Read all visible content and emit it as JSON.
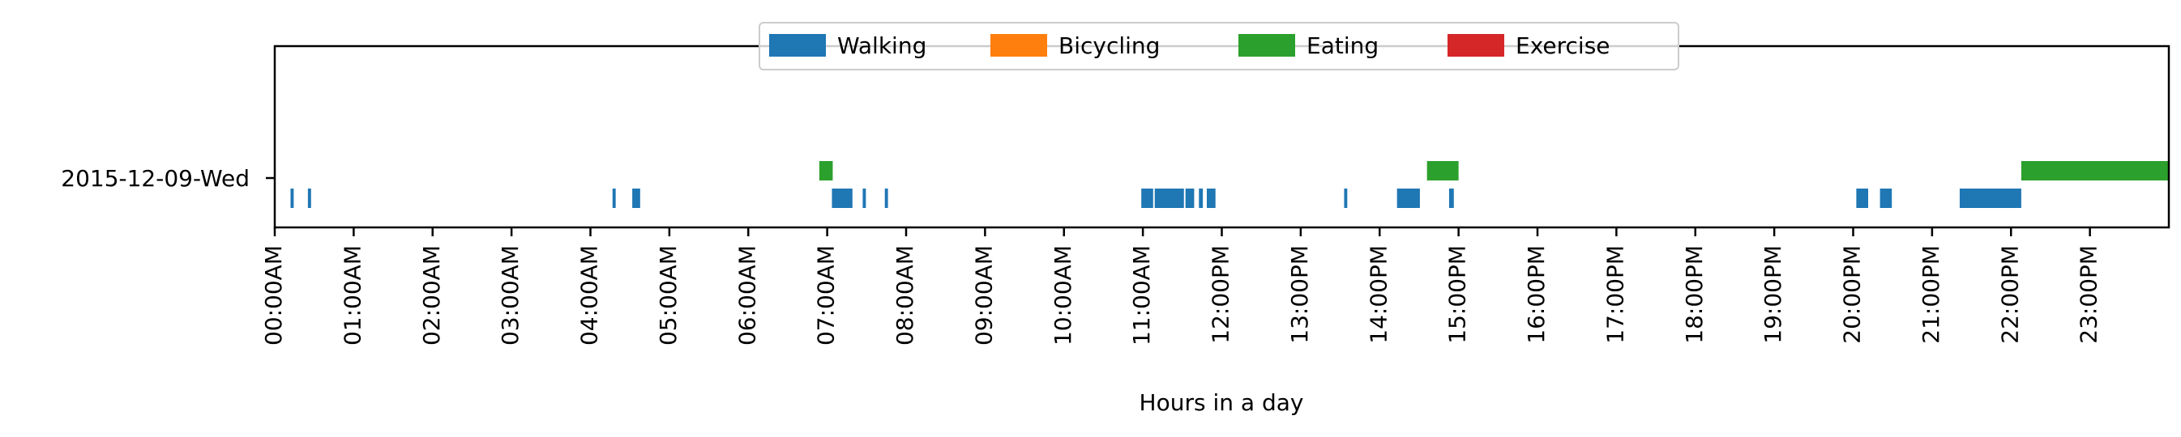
{
  "chart_data": {
    "type": "timeline",
    "xlabel": "Hours in a day",
    "ylabel": "",
    "xlim": [
      0,
      24
    ],
    "day_label": "2015-12-09-Wed",
    "x_ticks": [
      "00:00AM",
      "01:00AM",
      "02:00AM",
      "03:00AM",
      "04:00AM",
      "05:00AM",
      "06:00AM",
      "07:00AM",
      "08:00AM",
      "09:00AM",
      "10:00AM",
      "11:00AM",
      "12:00PM",
      "13:00PM",
      "14:00PM",
      "15:00PM",
      "16:00PM",
      "17:00PM",
      "18:00PM",
      "19:00PM",
      "20:00PM",
      "21:00PM",
      "22:00PM",
      "23:00PM"
    ],
    "legend": {
      "placement": "top-center",
      "entries": [
        {
          "name": "Walking",
          "color": "#1f77b4"
        },
        {
          "name": "Bicycling",
          "color": "#ff7f0e"
        },
        {
          "name": "Eating",
          "color": "#2ca02c"
        },
        {
          "name": "Exercise",
          "color": "#d62728"
        }
      ]
    },
    "series": [
      {
        "name": "Walking",
        "color": "#1f77b4",
        "lane": "lower",
        "intervals": [
          [
            0.2,
            0.24
          ],
          [
            0.42,
            0.46
          ],
          [
            4.28,
            4.32
          ],
          [
            4.53,
            4.63
          ],
          [
            7.06,
            7.32
          ],
          [
            7.45,
            7.49
          ],
          [
            7.73,
            7.77
          ],
          [
            10.98,
            11.13
          ],
          [
            11.15,
            11.52
          ],
          [
            11.54,
            11.65
          ],
          [
            11.71,
            11.76
          ],
          [
            11.81,
            11.92
          ],
          [
            13.55,
            13.59
          ],
          [
            14.22,
            14.51
          ],
          [
            14.88,
            14.94
          ],
          [
            20.04,
            20.19
          ],
          [
            20.34,
            20.49
          ],
          [
            21.35,
            22.13
          ]
        ]
      },
      {
        "name": "Bicycling",
        "color": "#ff7f0e",
        "lane": "upper",
        "intervals": []
      },
      {
        "name": "Eating",
        "color": "#2ca02c",
        "lane": "upper",
        "intervals": [
          [
            6.9,
            7.07
          ],
          [
            14.6,
            15.0
          ],
          [
            22.13,
            24.0
          ]
        ]
      },
      {
        "name": "Exercise",
        "color": "#d62728",
        "lane": "upper",
        "intervals": []
      }
    ]
  }
}
